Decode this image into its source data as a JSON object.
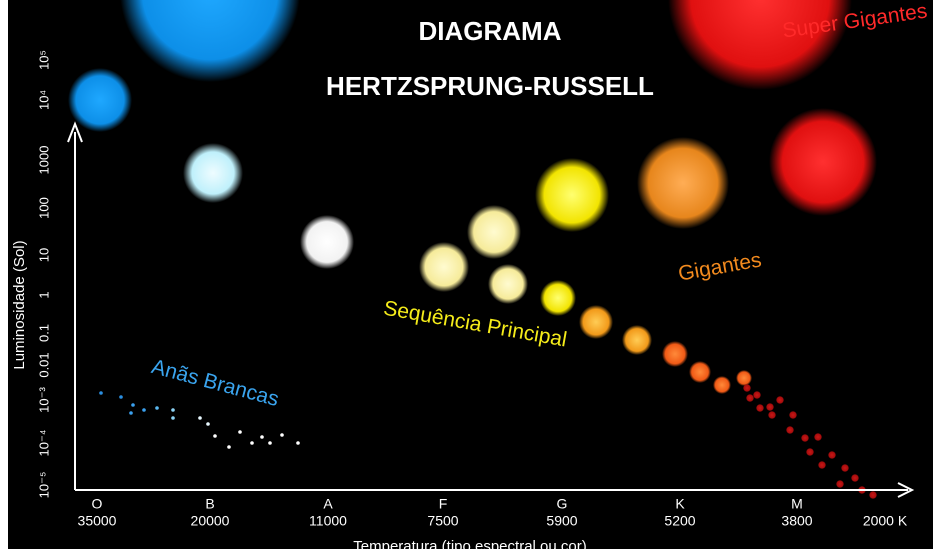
{
  "title": {
    "line1": "DIAGRAMA",
    "line2": "HERTZSPRUNG-RUSSELL"
  },
  "y_axis": {
    "label": "Luminosidade (Sol)",
    "ticks": [
      "10⁻⁵",
      "10⁻⁴",
      "10⁻³",
      "0.01",
      "0.1",
      "1",
      "10",
      "100",
      "1000",
      "10⁴",
      "10⁵"
    ]
  },
  "x_axis": {
    "label": "Temperatura (tipo espectral ou cor)",
    "classes": [
      "O",
      "B",
      "A",
      "F",
      "G",
      "K",
      "M"
    ],
    "temperatures": [
      "35000",
      "20000",
      "11000",
      "7500",
      "5900",
      "5200",
      "3800",
      "2000 K"
    ]
  },
  "regions": {
    "supergiants": "Super Gigantes",
    "giants": "Gigantes",
    "main_sequence": "Sequência Principal",
    "white_dwarfs": "Anãs Brancas"
  }
}
